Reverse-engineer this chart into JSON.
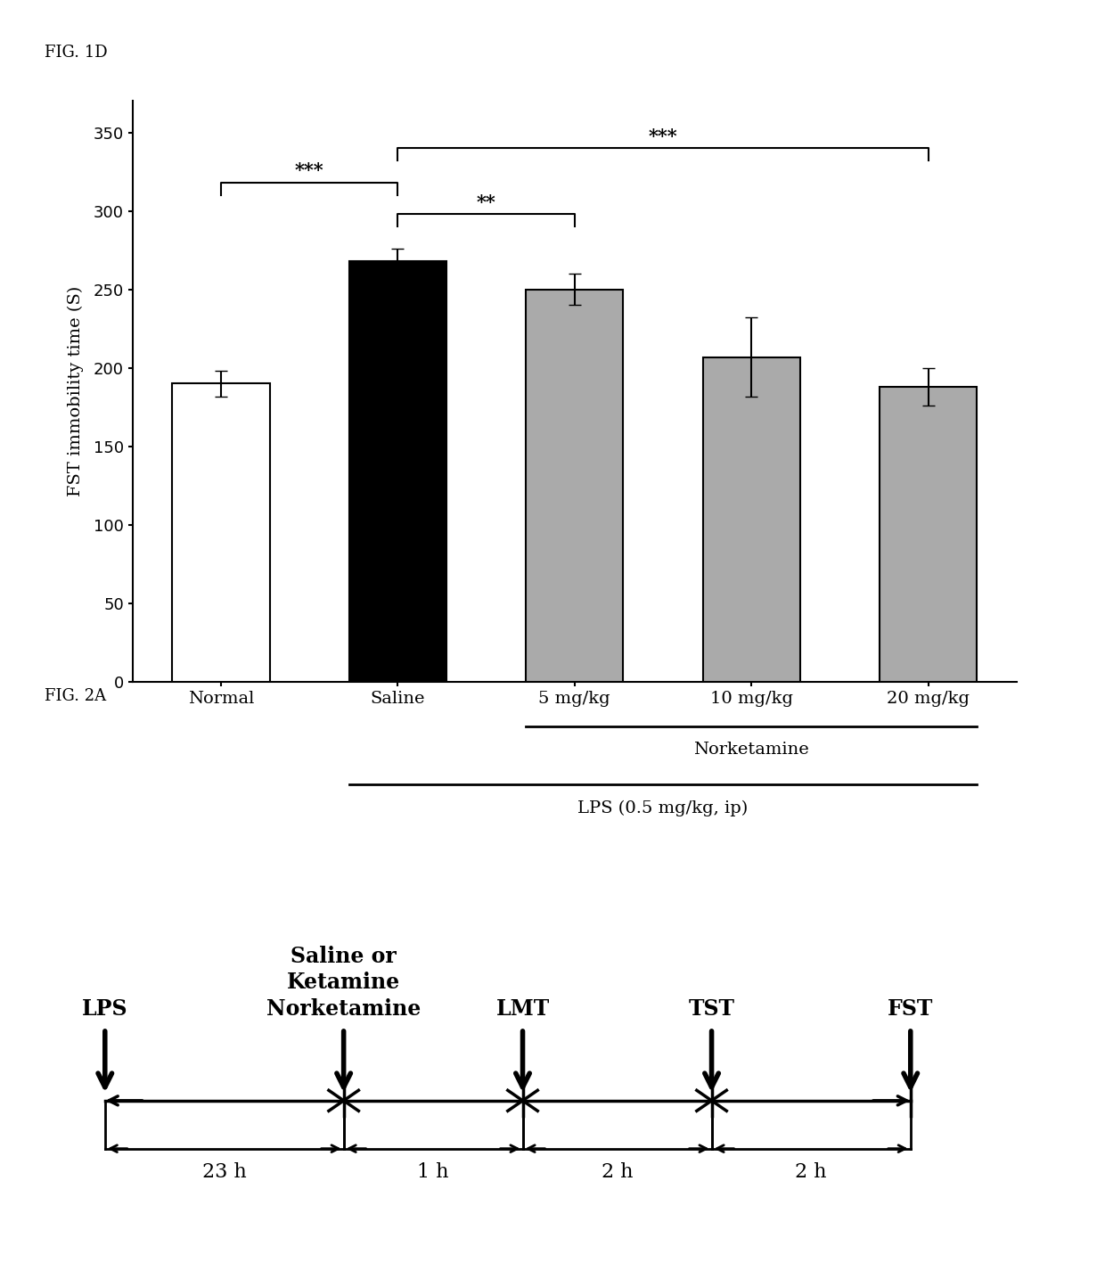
{
  "fig_label_1": "FIG. 1D",
  "fig_label_2": "FIG. 2A",
  "bar_categories": [
    "Normal",
    "Saline",
    "5 mg/kg",
    "10 mg/kg",
    "20 mg/kg"
  ],
  "bar_values": [
    190,
    268,
    250,
    207,
    188
  ],
  "bar_errors": [
    8,
    8,
    10,
    25,
    12
  ],
  "bar_colors": [
    "#ffffff",
    "#000000",
    "#aaaaaa",
    "#aaaaaa",
    "#aaaaaa"
  ],
  "bar_edgecolor": "#000000",
  "ylabel": "FST immobility time (S)",
  "ylim": [
    0,
    370
  ],
  "yticks": [
    0,
    50,
    100,
    150,
    200,
    250,
    300,
    350
  ],
  "norketamine_label": "Norketamine",
  "lps_label": "LPS (0.5 mg/kg, ip)",
  "sig_1_label": "***",
  "sig_2_label": "**",
  "sig_3_label": "***",
  "timeline_labels": [
    "LPS",
    "Saline or\nKetamine\nNorketamine",
    "LMT",
    "TST",
    "FST"
  ],
  "timeline_intervals": [
    "23 h",
    "1 h",
    "2 h",
    "2 h"
  ],
  "background_color": "#ffffff"
}
